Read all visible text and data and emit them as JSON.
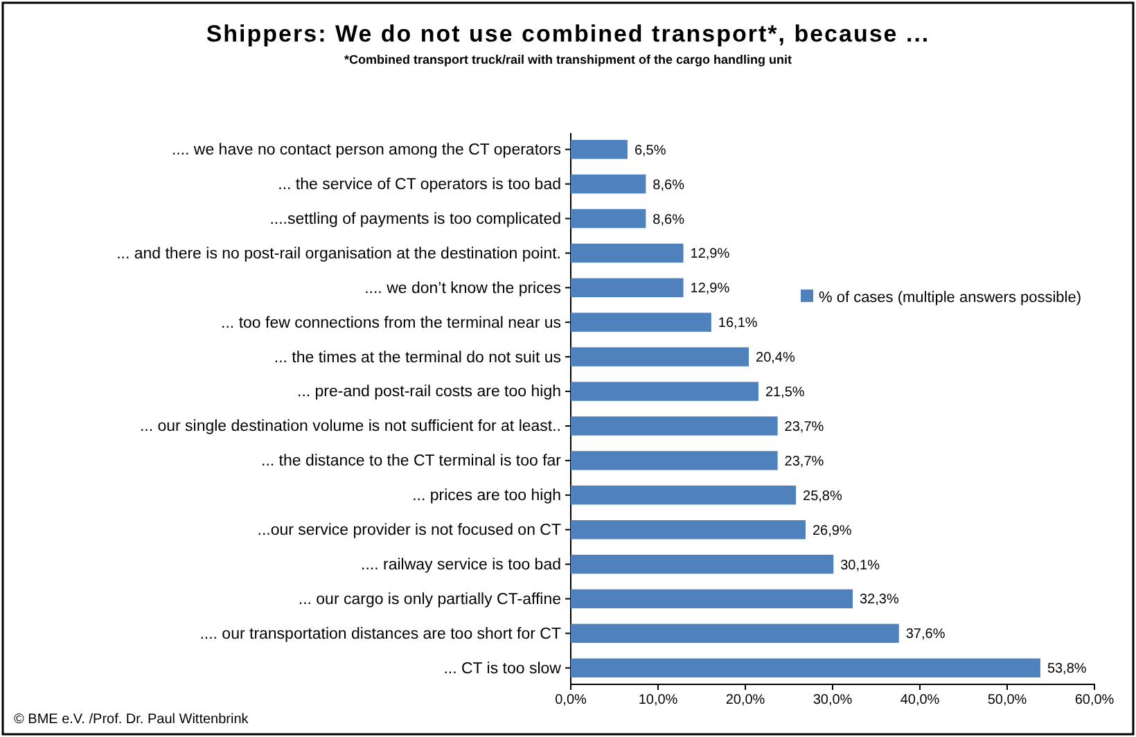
{
  "chart_data": {
    "type": "bar",
    "orientation": "horizontal",
    "title": "Shippers: We do not use combined transport*, because ...",
    "subtitle": "*Combined transport truck/rail with transhipment of the cargo handling unit",
    "categories": [
      ".... we have no contact person among the CT operators",
      "... the service of CT operators is too bad",
      "....settling of payments is too complicated",
      "... and there is no post-rail organisation at the destination point.",
      ".... we don’t know the prices",
      "... too few connections from the terminal near us",
      "... the times at the terminal do not suit us",
      "... pre-and post-rail costs are too high",
      "... our single destination volume is not sufficient for at least..",
      "... the distance to the CT terminal is too far",
      "... prices are too high",
      "...our service provider is not focused on CT",
      ".... railway service is too bad",
      "... our cargo is only partially CT-affine",
      ".... our transportation distances are too short for CT",
      "... CT is too slow"
    ],
    "series": [
      {
        "name": "% of cases (multiple answers possible)",
        "color": "#4f81bd",
        "values": [
          6.5,
          8.6,
          8.6,
          12.9,
          12.9,
          16.1,
          20.4,
          21.5,
          23.7,
          23.7,
          25.8,
          26.9,
          30.1,
          32.3,
          37.6,
          53.8
        ],
        "value_labels": [
          "6,5%",
          "8,6%",
          "8,6%",
          "12,9%",
          "12,9%",
          "16,1%",
          "20,4%",
          "21,5%",
          "23,7%",
          "23,7%",
          "25,8%",
          "26,9%",
          "30,1%",
          "32,3%",
          "37,6%",
          "53,8%"
        ]
      }
    ],
    "xlim": [
      0,
      60
    ],
    "xticks": [
      {
        "value": 0,
        "label": "0,0%"
      },
      {
        "value": 10,
        "label": "10,0%"
      },
      {
        "value": 20,
        "label": "20,0%"
      },
      {
        "value": 30,
        "label": "30,0%"
      },
      {
        "value": 40,
        "label": "40,0%"
      },
      {
        "value": 50,
        "label": "50,0%"
      },
      {
        "value": 60,
        "label": "60,0%"
      }
    ],
    "legend": "right",
    "grid": false,
    "annotations": [
      "© BME e.V. /Prof. Dr. Paul Wittenbrink"
    ]
  }
}
